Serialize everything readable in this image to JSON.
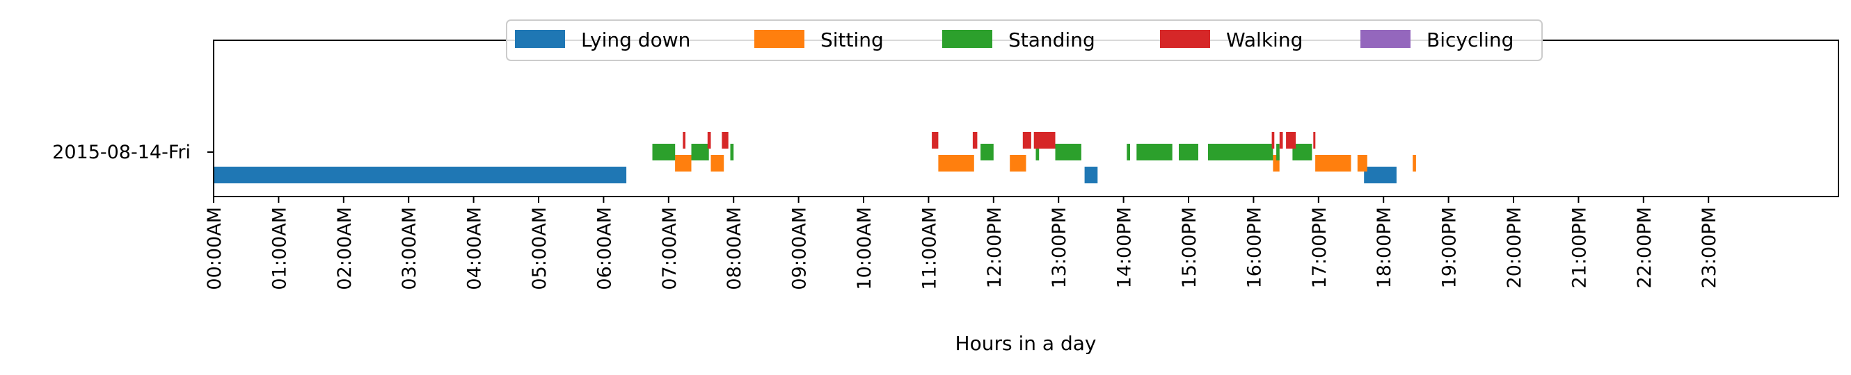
{
  "chart_data": {
    "type": "timeline",
    "title": "",
    "xlabel": "Hours in a day",
    "ylabel": "",
    "row_label": "2015-08-14-Fri",
    "xlim": [
      0,
      24
    ],
    "x_ticks": [
      "00:00AM",
      "01:00AM",
      "02:00AM",
      "03:00AM",
      "04:00AM",
      "05:00AM",
      "06:00AM",
      "07:00AM",
      "08:00AM",
      "09:00AM",
      "10:00AM",
      "11:00AM",
      "12:00PM",
      "13:00PM",
      "14:00PM",
      "15:00PM",
      "16:00PM",
      "17:00PM",
      "18:00PM",
      "19:00PM",
      "20:00PM",
      "21:00PM",
      "22:00PM",
      "23:00PM"
    ],
    "legend": {
      "placement": "top-center",
      "entries": [
        {
          "name": "Lying down",
          "color": "#1f77b4"
        },
        {
          "name": "Sitting",
          "color": "#ff7f0e"
        },
        {
          "name": "Standing",
          "color": "#2ca02c"
        },
        {
          "name": "Walking",
          "color": "#d62728"
        },
        {
          "name": "Bicycling",
          "color": "#9467bd"
        }
      ]
    },
    "series": [
      {
        "name": "Lying down",
        "color": "#1f77b4",
        "intervals": [
          [
            0.0,
            6.35
          ],
          [
            13.4,
            13.6
          ],
          [
            17.7,
            18.2
          ]
        ]
      },
      {
        "name": "Sitting",
        "color": "#ff7f0e",
        "intervals": [
          [
            7.1,
            7.35
          ],
          [
            7.65,
            7.85
          ],
          [
            11.15,
            11.7
          ],
          [
            12.25,
            12.5
          ],
          [
            16.3,
            16.4
          ],
          [
            16.95,
            17.5
          ],
          [
            17.6,
            17.75
          ],
          [
            18.45,
            18.5
          ]
        ]
      },
      {
        "name": "Standing",
        "color": "#2ca02c",
        "intervals": [
          [
            6.75,
            7.1
          ],
          [
            7.35,
            7.62
          ],
          [
            7.95,
            8.0
          ],
          [
            11.8,
            12.0
          ],
          [
            12.65,
            12.7
          ],
          [
            12.95,
            13.35
          ],
          [
            14.05,
            14.1
          ],
          [
            14.2,
            14.75
          ],
          [
            14.85,
            15.15
          ],
          [
            15.3,
            16.3
          ],
          [
            16.35,
            16.4
          ],
          [
            16.6,
            16.9
          ]
        ]
      },
      {
        "name": "Walking",
        "color": "#d62728",
        "intervals": [
          [
            7.22,
            7.26
          ],
          [
            7.6,
            7.65
          ],
          [
            7.82,
            7.92
          ],
          [
            11.05,
            11.15
          ],
          [
            11.68,
            11.75
          ],
          [
            12.45,
            12.58
          ],
          [
            12.62,
            12.95
          ],
          [
            16.28,
            16.32
          ],
          [
            16.4,
            16.45
          ],
          [
            16.5,
            16.65
          ],
          [
            16.92,
            16.95
          ]
        ]
      },
      {
        "name": "Bicycling",
        "color": "#9467bd",
        "intervals": []
      }
    ]
  }
}
